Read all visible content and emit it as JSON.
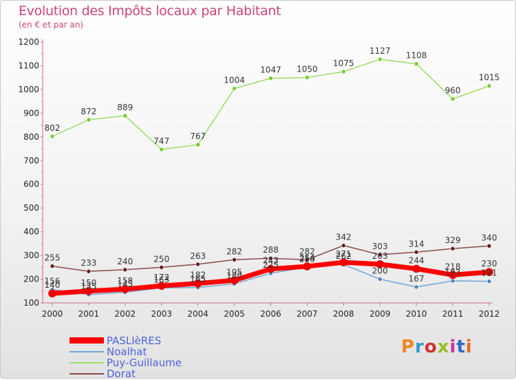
{
  "header": {
    "title": "Evolution des Impôts locaux par Habitant",
    "subtitle": "(en € et par an)"
  },
  "logo": {
    "text": "Proxiti",
    "colors": [
      "#ee8822",
      "#3399cc",
      "#cc3333",
      "#99bb22",
      "#cc3399",
      "#3366cc",
      "#ee6622"
    ]
  },
  "chart_data": {
    "type": "line",
    "categories": [
      "2000",
      "2001",
      "2002",
      "2003",
      "2004",
      "2005",
      "2006",
      "2007",
      "2008",
      "2009",
      "2010",
      "2011",
      "2012"
    ],
    "ylim": [
      100,
      1200
    ],
    "yticks": [
      100,
      200,
      300,
      400,
      500,
      600,
      700,
      800,
      900,
      1000,
      1100,
      1200
    ],
    "grid": false,
    "legend_position": "bottom-left",
    "series": [
      {
        "name": "Puy-Guillaume",
        "color": "#99dd66",
        "marker": "#77cc33",
        "width": 1.5,
        "values": [
          802,
          872,
          889,
          747,
          767,
          1004,
          1047,
          1050,
          1075,
          1127,
          1108,
          960,
          1015
        ],
        "labels": [
          "802",
          "872",
          "889",
          "747",
          "767",
          "1004",
          "1047",
          "1050",
          "1075",
          "1127",
          "1108",
          "960",
          "1015"
        ]
      },
      {
        "name": "Dorat",
        "color": "#8b4a4a",
        "marker": "#661f1f",
        "width": 1.5,
        "values": [
          255,
          233,
          240,
          250,
          263,
          282,
          288,
          282,
          342,
          303,
          314,
          329,
          340
        ],
        "labels": [
          "255",
          "233",
          "240",
          "250",
          "263",
          "282",
          "288",
          "282",
          "342",
          "303",
          "314",
          "329",
          "340"
        ]
      },
      {
        "name": "Noalhat",
        "color": "#6fa5d6",
        "marker": "#4a86c0",
        "width": 1.5,
        "values": [
          156,
          135,
          145,
          163,
          165,
          180,
          225,
          250,
          262,
          200,
          167,
          193,
          191
        ],
        "labels": [
          "156",
          "135",
          "145",
          "163",
          "165",
          "180",
          "225",
          "250",
          "262",
          "200",
          "167",
          "193",
          "191"
        ]
      },
      {
        "name": "PASLIèRES",
        "color": "#ff0000",
        "marker": "#ee0000",
        "width": 7,
        "values": [
          140,
          150,
          158,
          172,
          182,
          195,
          243,
          254,
          271,
          263,
          244,
          218,
          230
        ],
        "labels": [
          "140",
          "150",
          "158",
          "172",
          "182",
          "195",
          "243",
          "254",
          "271",
          "263",
          "244",
          "218",
          "230"
        ]
      }
    ],
    "legend_order": [
      "PASLIèRES",
      "Noalhat",
      "Puy-Guillaume",
      "Dorat"
    ]
  }
}
